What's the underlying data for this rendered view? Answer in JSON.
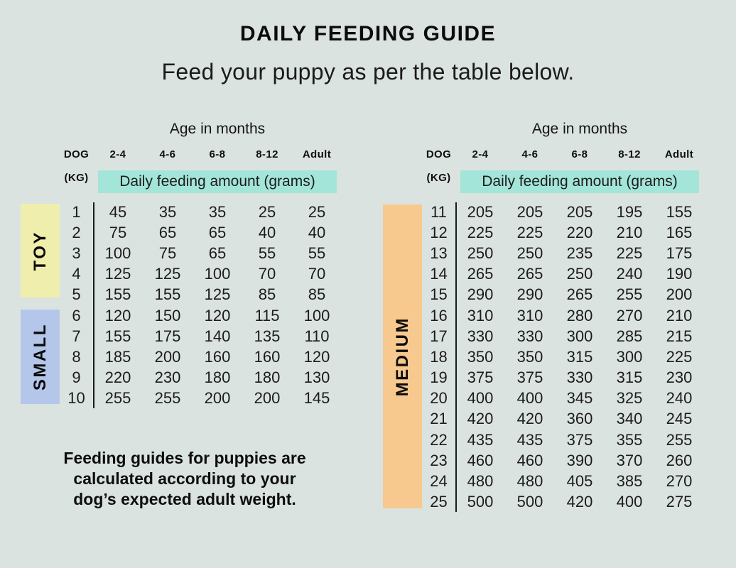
{
  "header": {
    "title": "DAILY FEEDING GUIDE",
    "subtitle": "Feed your puppy as per the table below."
  },
  "table_headers": {
    "age_group_label": "Age in months",
    "dog_label": "DOG",
    "kg_label": "(KG)",
    "age_columns": [
      "2-4",
      "4-6",
      "6-8",
      "8-12",
      "Adult"
    ],
    "amount_label": "Daily feeding amount (grams)"
  },
  "footnote_lines": [
    "Feeding guides for puppies are",
    "calculated according to your",
    "dog’s expected adult weight."
  ],
  "colors": {
    "background": "#dbe3e0",
    "amount_banner_teal": "#a4e5d9",
    "toy_badge_yellow": "#f0eead",
    "small_badge_blue": "#b4c7ea",
    "medium_badge_orange": "#f8c98e",
    "text": "#141414"
  },
  "chart_data": [
    {
      "type": "table",
      "title": "DAILY FEEDING GUIDE",
      "column_group_header": "Age in months",
      "columns": [
        "DOG (KG)",
        "2-4",
        "4-6",
        "6-8",
        "8-12",
        "Adult"
      ],
      "values_unit": "Daily feeding amount (grams)",
      "groups": [
        {
          "label": "TOY",
          "kg_rows": [
            1,
            5
          ]
        },
        {
          "label": "SMALL",
          "kg_rows": [
            6,
            10
          ]
        }
      ],
      "rows": [
        {
          "kg": 1,
          "amounts": [
            45,
            35,
            35,
            25,
            25
          ]
        },
        {
          "kg": 2,
          "amounts": [
            75,
            65,
            65,
            40,
            40
          ]
        },
        {
          "kg": 3,
          "amounts": [
            100,
            75,
            65,
            55,
            55
          ]
        },
        {
          "kg": 4,
          "amounts": [
            125,
            125,
            100,
            70,
            70
          ]
        },
        {
          "kg": 5,
          "amounts": [
            155,
            155,
            125,
            85,
            85
          ]
        },
        {
          "kg": 6,
          "amounts": [
            120,
            150,
            120,
            115,
            100
          ]
        },
        {
          "kg": 7,
          "amounts": [
            155,
            175,
            140,
            135,
            110
          ]
        },
        {
          "kg": 8,
          "amounts": [
            185,
            200,
            160,
            160,
            120
          ]
        },
        {
          "kg": 9,
          "amounts": [
            220,
            230,
            180,
            180,
            130
          ]
        },
        {
          "kg": 10,
          "amounts": [
            255,
            255,
            200,
            200,
            145
          ]
        }
      ]
    },
    {
      "type": "table",
      "title": "DAILY FEEDING GUIDE",
      "column_group_header": "Age in months",
      "columns": [
        "DOG (KG)",
        "2-4",
        "4-6",
        "6-8",
        "8-12",
        "Adult"
      ],
      "values_unit": "Daily feeding amount (grams)",
      "groups": [
        {
          "label": "MEDIUM",
          "kg_rows": [
            11,
            25
          ]
        }
      ],
      "rows": [
        {
          "kg": 11,
          "amounts": [
            205,
            205,
            205,
            195,
            155
          ]
        },
        {
          "kg": 12,
          "amounts": [
            225,
            225,
            220,
            210,
            165
          ]
        },
        {
          "kg": 13,
          "amounts": [
            250,
            250,
            235,
            225,
            175
          ]
        },
        {
          "kg": 14,
          "amounts": [
            265,
            265,
            250,
            240,
            190
          ]
        },
        {
          "kg": 15,
          "amounts": [
            290,
            290,
            265,
            255,
            200
          ]
        },
        {
          "kg": 16,
          "amounts": [
            310,
            310,
            280,
            270,
            210
          ]
        },
        {
          "kg": 17,
          "amounts": [
            330,
            330,
            300,
            285,
            215
          ]
        },
        {
          "kg": 18,
          "amounts": [
            350,
            350,
            315,
            300,
            225
          ]
        },
        {
          "kg": 19,
          "amounts": [
            375,
            375,
            330,
            315,
            230
          ]
        },
        {
          "kg": 20,
          "amounts": [
            400,
            400,
            345,
            325,
            240
          ]
        },
        {
          "kg": 21,
          "amounts": [
            420,
            420,
            360,
            340,
            245
          ]
        },
        {
          "kg": 22,
          "amounts": [
            435,
            435,
            375,
            355,
            255
          ]
        },
        {
          "kg": 23,
          "amounts": [
            460,
            460,
            390,
            370,
            260
          ]
        },
        {
          "kg": 24,
          "amounts": [
            480,
            480,
            405,
            385,
            270
          ]
        },
        {
          "kg": 25,
          "amounts": [
            500,
            500,
            420,
            400,
            275
          ]
        }
      ]
    }
  ]
}
